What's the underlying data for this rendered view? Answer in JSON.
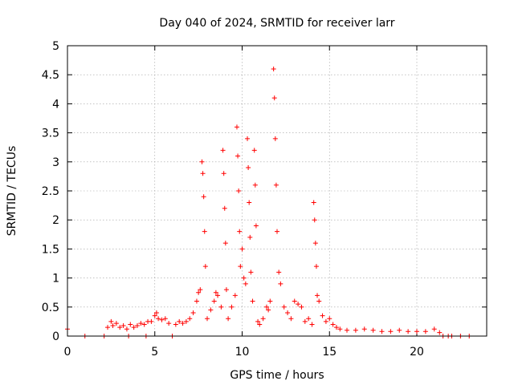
{
  "chart_data": {
    "type": "scatter",
    "title": "Day 040 of 2024, SRMTID for receiver larr",
    "xlabel": "GPS time / hours",
    "ylabel": "SRMTID / TECUs",
    "xlim": [
      0,
      24
    ],
    "ylim": [
      0,
      5
    ],
    "x_ticks": [
      0,
      5,
      10,
      15,
      20
    ],
    "x_tick_labels": [
      "0",
      "5",
      "10",
      "15",
      "20"
    ],
    "y_ticks": [
      0,
      0.5,
      1,
      1.5,
      2,
      2.5,
      3,
      3.5,
      4,
      4.5,
      5
    ],
    "y_tick_labels": [
      "0",
      "0.5",
      "1",
      "1.5",
      "2",
      "2.5",
      "3",
      "3.5",
      "4",
      "4.5",
      "5"
    ],
    "grid": true,
    "marker": "+",
    "color": "#ff0000",
    "series": [
      {
        "name": "SRMTID",
        "points": [
          [
            0.0,
            0.12
          ],
          [
            1.0,
            0.0
          ],
          [
            2.1,
            0.0
          ],
          [
            2.3,
            0.15
          ],
          [
            2.5,
            0.25
          ],
          [
            2.6,
            0.18
          ],
          [
            2.8,
            0.22
          ],
          [
            3.0,
            0.15
          ],
          [
            3.2,
            0.18
          ],
          [
            3.4,
            0.12
          ],
          [
            3.5,
            0.0
          ],
          [
            3.6,
            0.2
          ],
          [
            3.8,
            0.15
          ],
          [
            4.0,
            0.18
          ],
          [
            4.2,
            0.22
          ],
          [
            4.4,
            0.2
          ],
          [
            4.5,
            0.0
          ],
          [
            4.6,
            0.25
          ],
          [
            4.8,
            0.25
          ],
          [
            5.0,
            0.35
          ],
          [
            5.1,
            0.4
          ],
          [
            5.2,
            0.3
          ],
          [
            5.4,
            0.28
          ],
          [
            5.6,
            0.3
          ],
          [
            5.8,
            0.22
          ],
          [
            6.0,
            0.0
          ],
          [
            6.2,
            0.2
          ],
          [
            6.4,
            0.25
          ],
          [
            6.6,
            0.22
          ],
          [
            6.8,
            0.25
          ],
          [
            7.0,
            0.3
          ],
          [
            7.2,
            0.4
          ],
          [
            7.4,
            0.6
          ],
          [
            7.5,
            0.75
          ],
          [
            7.6,
            0.8
          ],
          [
            7.7,
            3.0
          ],
          [
            7.75,
            2.8
          ],
          [
            7.8,
            2.4
          ],
          [
            7.85,
            1.8
          ],
          [
            7.9,
            1.2
          ],
          [
            8.0,
            0.3
          ],
          [
            8.2,
            0.45
          ],
          [
            8.4,
            0.6
          ],
          [
            8.5,
            0.75
          ],
          [
            8.6,
            0.7
          ],
          [
            8.8,
            0.5
          ],
          [
            8.9,
            3.2
          ],
          [
            8.95,
            2.8
          ],
          [
            9.0,
            2.2
          ],
          [
            9.05,
            1.6
          ],
          [
            9.1,
            0.8
          ],
          [
            9.2,
            0.3
          ],
          [
            9.4,
            0.5
          ],
          [
            9.6,
            0.7
          ],
          [
            9.7,
            3.6
          ],
          [
            9.75,
            3.1
          ],
          [
            9.8,
            2.5
          ],
          [
            9.85,
            1.8
          ],
          [
            9.9,
            1.2
          ],
          [
            10.0,
            1.5
          ],
          [
            10.1,
            1.0
          ],
          [
            10.2,
            0.9
          ],
          [
            10.3,
            3.4
          ],
          [
            10.35,
            2.9
          ],
          [
            10.4,
            2.3
          ],
          [
            10.45,
            1.7
          ],
          [
            10.5,
            1.1
          ],
          [
            10.6,
            0.6
          ],
          [
            10.7,
            3.2
          ],
          [
            10.75,
            2.6
          ],
          [
            10.8,
            1.9
          ],
          [
            10.9,
            0.25
          ],
          [
            11.0,
            0.2
          ],
          [
            11.2,
            0.3
          ],
          [
            11.4,
            0.5
          ],
          [
            11.5,
            0.45
          ],
          [
            11.6,
            0.6
          ],
          [
            11.8,
            4.6
          ],
          [
            11.85,
            4.1
          ],
          [
            11.9,
            3.4
          ],
          [
            11.95,
            2.6
          ],
          [
            12.0,
            1.8
          ],
          [
            12.1,
            1.1
          ],
          [
            12.2,
            0.9
          ],
          [
            12.4,
            0.5
          ],
          [
            12.6,
            0.4
          ],
          [
            12.8,
            0.3
          ],
          [
            13.0,
            0.6
          ],
          [
            13.2,
            0.55
          ],
          [
            13.4,
            0.5
          ],
          [
            13.6,
            0.25
          ],
          [
            13.8,
            0.3
          ],
          [
            14.0,
            0.2
          ],
          [
            14.1,
            2.3
          ],
          [
            14.15,
            2.0
          ],
          [
            14.2,
            1.6
          ],
          [
            14.25,
            1.2
          ],
          [
            14.3,
            0.7
          ],
          [
            14.4,
            0.6
          ],
          [
            14.6,
            0.35
          ],
          [
            14.8,
            0.25
          ],
          [
            15.0,
            0.3
          ],
          [
            15.2,
            0.2
          ],
          [
            15.4,
            0.15
          ],
          [
            15.6,
            0.12
          ],
          [
            16.0,
            0.1
          ],
          [
            16.5,
            0.1
          ],
          [
            17.0,
            0.12
          ],
          [
            17.5,
            0.1
          ],
          [
            18.0,
            0.08
          ],
          [
            18.5,
            0.08
          ],
          [
            19.0,
            0.1
          ],
          [
            19.5,
            0.08
          ],
          [
            20.0,
            0.08
          ],
          [
            20.5,
            0.08
          ],
          [
            21.0,
            0.12
          ],
          [
            21.3,
            0.06
          ],
          [
            21.5,
            0.0
          ],
          [
            21.8,
            0.0
          ],
          [
            22.0,
            0.0
          ],
          [
            22.5,
            0.0
          ],
          [
            23.0,
            0.0
          ]
        ]
      }
    ]
  }
}
